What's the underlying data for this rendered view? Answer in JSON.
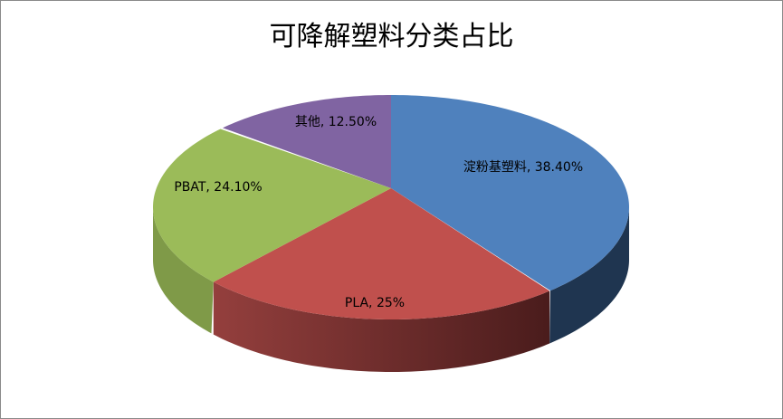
{
  "chart_data": {
    "type": "pie",
    "style": "3d",
    "title": "可降解塑料分类占比",
    "categories": [
      "淀粉基塑料",
      "PLA",
      "PBAT",
      "其他"
    ],
    "values": [
      38.4,
      25,
      24.1,
      12.5
    ],
    "data_labels": [
      "淀粉基塑料, 38.40%",
      "PLA, 25%",
      "PBAT, 24.10%",
      "其他, 12.50%"
    ],
    "colors": [
      "#4f81bd",
      "#c0504d",
      "#9bbb59",
      "#8064a2"
    ],
    "side_colors": [
      "#1f3550",
      "#6e2b2a",
      "#7f9a48",
      "#5c4878"
    ],
    "legend": "none"
  }
}
